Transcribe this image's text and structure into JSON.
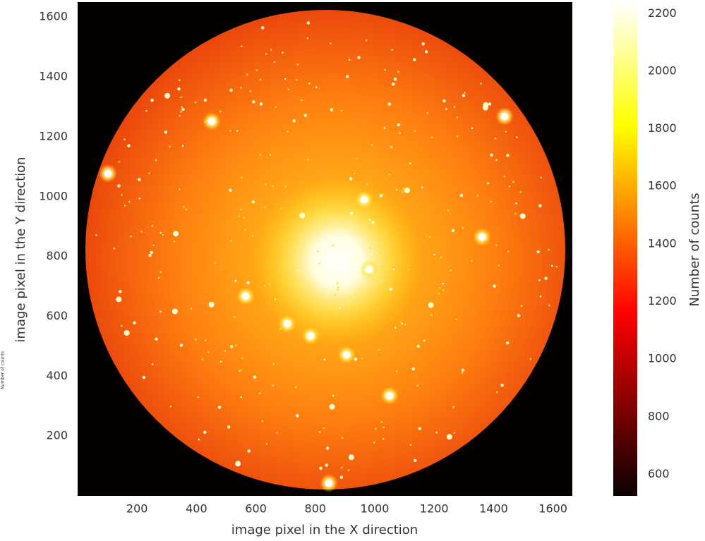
{
  "chart_data": {
    "type": "image",
    "xlabel": "image pixel in the X direction",
    "ylabel": "image pixel in the Y direction",
    "colorbar_label": "Number of counts",
    "colormap": "hot",
    "xlim": [
      0,
      1665
    ],
    "xticks": [
      200,
      400,
      600,
      800,
      1000,
      1200,
      1400,
      1600
    ],
    "ylim": [
      0,
      1650
    ],
    "yticks": [
      200,
      400,
      600,
      800,
      1000,
      1200,
      1400,
      1600
    ],
    "clim": [
      525,
      2240
    ],
    "cticks": [
      600,
      800,
      1000,
      1200,
      1400,
      1600,
      1800,
      2000,
      2200
    ]
  }
}
